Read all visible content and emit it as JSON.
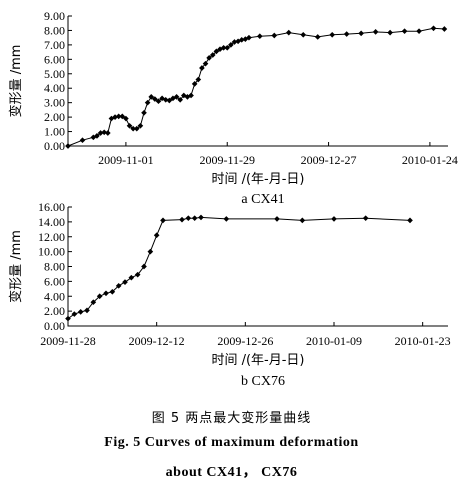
{
  "chart_data": [
    {
      "type": "line",
      "id": "cx41",
      "subtitle": "a  CX41",
      "xlabel": "时间 /(年-月-日)",
      "ylabel": "变形量 /mm",
      "ylim": [
        0,
        9
      ],
      "yticks": [
        "0.00",
        "1.00",
        "2.00",
        "3.00",
        "4.00",
        "5.00",
        "6.00",
        "7.00",
        "8.00",
        "9.00"
      ],
      "yticks_v": [
        0,
        1,
        2,
        3,
        4,
        5,
        6,
        7,
        8,
        9
      ],
      "xlim": [
        "2009-10-16",
        "2010-01-29"
      ],
      "xticks": [
        "2009-11-01",
        "2009-11-29",
        "2009-12-27",
        "2010-01-24"
      ],
      "series": [
        {
          "x": [
            "2009-10-16",
            "2009-10-20",
            "2009-10-23",
            "2009-10-24",
            "2009-10-25",
            "2009-10-26",
            "2009-10-27",
            "2009-10-28",
            "2009-10-29",
            "2009-10-30",
            "2009-10-31",
            "2009-11-01",
            "2009-11-02",
            "2009-11-03",
            "2009-11-04",
            "2009-11-05",
            "2009-11-06",
            "2009-11-07",
            "2009-11-08",
            "2009-11-09",
            "2009-11-10",
            "2009-11-11",
            "2009-11-12",
            "2009-11-13",
            "2009-11-14",
            "2009-11-15",
            "2009-11-16",
            "2009-11-17",
            "2009-11-18",
            "2009-11-19",
            "2009-11-20",
            "2009-11-21",
            "2009-11-22",
            "2009-11-23",
            "2009-11-24",
            "2009-11-25",
            "2009-11-26",
            "2009-11-27",
            "2009-11-28",
            "2009-11-29",
            "2009-11-30",
            "2009-12-01",
            "2009-12-02",
            "2009-12-03",
            "2009-12-04",
            "2009-12-05",
            "2009-12-08",
            "2009-12-12",
            "2009-12-16",
            "2009-12-20",
            "2009-12-24",
            "2009-12-28",
            "2010-01-01",
            "2010-01-05",
            "2010-01-09",
            "2010-01-13",
            "2010-01-17",
            "2010-01-21",
            "2010-01-25",
            "2010-01-28"
          ],
          "y": [
            0.0,
            0.4,
            0.6,
            0.7,
            0.9,
            0.95,
            0.9,
            1.9,
            2.0,
            2.05,
            2.05,
            1.9,
            1.4,
            1.2,
            1.2,
            1.4,
            2.3,
            3.0,
            3.4,
            3.25,
            3.1,
            3.3,
            3.2,
            3.15,
            3.3,
            3.4,
            3.2,
            3.5,
            3.4,
            3.5,
            4.3,
            4.6,
            5.4,
            5.7,
            6.1,
            6.3,
            6.55,
            6.7,
            6.8,
            6.8,
            7.0,
            7.2,
            7.25,
            7.35,
            7.4,
            7.5,
            7.6,
            7.65,
            7.85,
            7.7,
            7.55,
            7.7,
            7.75,
            7.8,
            7.9,
            7.85,
            7.95,
            7.95,
            8.15,
            8.1
          ]
        }
      ]
    },
    {
      "type": "line",
      "id": "cx76",
      "subtitle": "b  CX76",
      "xlabel": "时间 /(年-月-日)",
      "ylabel": "变形量 /mm",
      "ylim": [
        0,
        16
      ],
      "yticks": [
        "0.00",
        "2.00",
        "4.00",
        "6.00",
        "8.00",
        "10.00",
        "12.00",
        "14.00",
        "16.00"
      ],
      "yticks_v": [
        0,
        2,
        4,
        6,
        8,
        10,
        12,
        14,
        16
      ],
      "xlim": [
        "2009-11-28",
        "2010-01-27"
      ],
      "xticks": [
        "2009-11-28",
        "2009-12-12",
        "2009-12-26",
        "2010-01-09",
        "2010-01-23"
      ],
      "series": [
        {
          "x": [
            "2009-11-28",
            "2009-11-29",
            "2009-11-30",
            "2009-12-01",
            "2009-12-02",
            "2009-12-03",
            "2009-12-04",
            "2009-12-05",
            "2009-12-06",
            "2009-12-07",
            "2009-12-08",
            "2009-12-09",
            "2009-12-10",
            "2009-12-11",
            "2009-12-12",
            "2009-12-13",
            "2009-12-16",
            "2009-12-17",
            "2009-12-18",
            "2009-12-19",
            "2009-12-23",
            "2009-12-31",
            "2010-01-04",
            "2010-01-09",
            "2010-01-14",
            "2010-01-21"
          ],
          "y": [
            1.0,
            1.6,
            1.9,
            2.1,
            3.2,
            4.0,
            4.4,
            4.6,
            5.4,
            5.9,
            6.5,
            6.9,
            8.0,
            10.0,
            12.2,
            14.2,
            14.3,
            14.5,
            14.5,
            14.6,
            14.4,
            14.4,
            14.2,
            14.4,
            14.5,
            14.2
          ]
        }
      ]
    }
  ],
  "caption": {
    "cn": "图 5  两点最大变形量曲线",
    "en_line1": "Fig. 5   Curves of maximum deformation",
    "en_line2": "about CX41， CX76"
  }
}
